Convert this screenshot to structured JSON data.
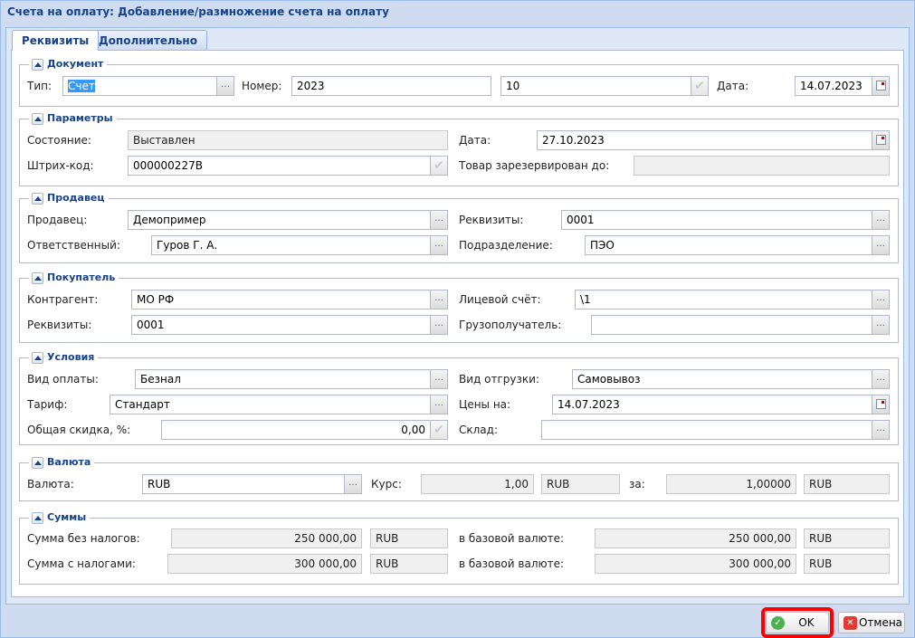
{
  "window": {
    "title": "Счета на оплату: Добавление/размножение счета на оплату"
  },
  "tabs": [
    {
      "label": "Реквизиты",
      "active": true
    },
    {
      "label": "Дополнительно",
      "active": false
    }
  ],
  "document": {
    "legend": "Документ",
    "type_label": "Тип:",
    "type_value": "Счет",
    "number_label": "Номер:",
    "number_value": "2023",
    "number_suffix": "10",
    "date_label": "Дата:",
    "date_value": "14.07.2023"
  },
  "params": {
    "legend": "Параметры",
    "state_label": "Состояние:",
    "state_value": "Выставлен",
    "date_label": "Дата:",
    "date_value": "27.10.2023",
    "barcode_label": "Штрих-код:",
    "barcode_value": "000000227B",
    "reserved_label": "Товар зарезервирован до:",
    "reserved_value": ""
  },
  "seller": {
    "legend": "Продавец",
    "seller_label": "Продавец:",
    "seller_value": "Демопример",
    "req_label": "Реквизиты:",
    "req_value": "0001",
    "resp_label": "Ответственный:",
    "resp_value": "Гуров Г. А.",
    "dept_label": "Подразделение:",
    "dept_value": "ПЭО"
  },
  "buyer": {
    "legend": "Покупатель",
    "agent_label": "Контрагент:",
    "agent_value": "МО РФ",
    "account_label": "Лицевой счёт:",
    "account_value": "\\1",
    "req_label": "Реквизиты:",
    "req_value": "0001",
    "consignee_label": "Грузополучатель:",
    "consignee_value": ""
  },
  "terms": {
    "legend": "Условия",
    "pay_label": "Вид оплаты:",
    "pay_value": "Безнал",
    "ship_label": "Вид отгрузки:",
    "ship_value": "Самовывоз",
    "tariff_label": "Тариф:",
    "tariff_value": "Стандарт",
    "prices_label": "Цены на:",
    "prices_value": "14.07.2023",
    "discount_label": "Общая скидка, %:",
    "discount_value": "0,00",
    "stock_label": "Склад:",
    "stock_value": ""
  },
  "currency": {
    "legend": "Валюта",
    "cur_label": "Валюта:",
    "cur_value": "RUB",
    "rate_label": "Курс:",
    "rate_value": "1,00",
    "rate_cur": "RUB",
    "per_label": "за:",
    "per_value": "1,00000",
    "per_cur": "RUB"
  },
  "sums": {
    "legend": "Суммы",
    "net_label": "Сумма без налогов:",
    "net_value": "250 000,00",
    "net_cur": "RUB",
    "net_base_label": "в базовой валюте:",
    "net_base_value": "250 000,00",
    "net_base_cur": "RUB",
    "gross_label": "Сумма с налогами:",
    "gross_value": "300 000,00",
    "gross_cur": "RUB",
    "gross_base_label": "в базовой валюте:",
    "gross_base_value": "300 000,00",
    "gross_base_cur": "RUB"
  },
  "buttons": {
    "ok": "OK",
    "cancel": "Отмена"
  },
  "colors": {
    "accent": "#15428b",
    "highlight": "#ff0000"
  }
}
